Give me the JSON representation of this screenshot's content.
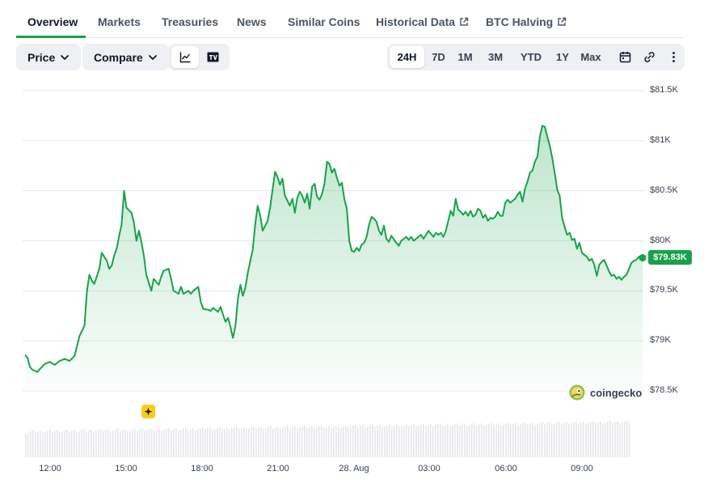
{
  "tabs": [
    {
      "label": "Overview",
      "active": true
    },
    {
      "label": "Markets"
    },
    {
      "label": "Treasuries"
    },
    {
      "label": "News"
    },
    {
      "label": "Similar Coins"
    },
    {
      "label": "Historical Data",
      "icon": "external-link-icon"
    },
    {
      "label": "BTC Halving",
      "icon": "external-link-icon"
    }
  ],
  "toolbar": {
    "price_label": "Price",
    "compare_label": "Compare",
    "view_modes": [
      "line-chart-icon",
      "tradingview-icon"
    ],
    "ranges": [
      "24H",
      "7D",
      "1M",
      "3M",
      "YTD",
      "1Y",
      "Max"
    ],
    "active_range": "24H",
    "tools": [
      "calendar-icon",
      "link-icon",
      "more-vertical-icon"
    ]
  },
  "chart_data": {
    "type": "area",
    "title": "",
    "xlabel": "",
    "ylabel": "",
    "x_ticks": [
      "12:00",
      "15:00",
      "18:00",
      "21:00",
      "28. Aug",
      "03:00",
      "06:00",
      "09:00"
    ],
    "y_ticks": [
      "$78.5K",
      "$79K",
      "$79.5K",
      "$80K",
      "$80.5K",
      "$81K",
      "$81.5K"
    ],
    "ylim": [
      78500,
      81500
    ],
    "x_unit": "hours after 11:00 (27 Aug)",
    "series": [
      {
        "values": [
          [
            0.0,
            78860
          ],
          [
            0.1,
            78830
          ],
          [
            0.2,
            78740
          ],
          [
            0.3,
            78710
          ],
          [
            0.5,
            78690
          ],
          [
            0.6,
            78720
          ],
          [
            0.8,
            78770
          ],
          [
            1.0,
            78790
          ],
          [
            1.2,
            78760
          ],
          [
            1.4,
            78800
          ],
          [
            1.6,
            78820
          ],
          [
            1.8,
            78800
          ],
          [
            2.0,
            78850
          ],
          [
            2.2,
            79050
          ],
          [
            2.4,
            79150
          ],
          [
            2.5,
            79500
          ],
          [
            2.6,
            79660
          ],
          [
            2.7,
            79600
          ],
          [
            2.8,
            79570
          ],
          [
            3.0,
            79720
          ],
          [
            3.1,
            79880
          ],
          [
            3.3,
            79800
          ],
          [
            3.4,
            79720
          ],
          [
            3.5,
            79750
          ],
          [
            3.6,
            79850
          ],
          [
            3.7,
            79920
          ],
          [
            3.8,
            80050
          ],
          [
            3.9,
            80160
          ],
          [
            4.0,
            80500
          ],
          [
            4.1,
            80330
          ],
          [
            4.3,
            80280
          ],
          [
            4.4,
            80180
          ],
          [
            4.5,
            80000
          ],
          [
            4.6,
            80100
          ],
          [
            4.7,
            79990
          ],
          [
            4.8,
            79850
          ],
          [
            4.9,
            79660
          ],
          [
            5.0,
            79580
          ],
          [
            5.1,
            79500
          ],
          [
            5.2,
            79620
          ],
          [
            5.4,
            79560
          ],
          [
            5.5,
            79640
          ],
          [
            5.6,
            79700
          ],
          [
            5.8,
            79720
          ],
          [
            5.9,
            79620
          ],
          [
            6.0,
            79500
          ],
          [
            6.2,
            79470
          ],
          [
            6.3,
            79540
          ],
          [
            6.4,
            79470
          ],
          [
            6.6,
            79500
          ],
          [
            6.7,
            79470
          ],
          [
            6.8,
            79500
          ],
          [
            7.0,
            79540
          ],
          [
            7.1,
            79390
          ],
          [
            7.2,
            79320
          ],
          [
            7.4,
            79310
          ],
          [
            7.5,
            79300
          ],
          [
            7.6,
            79330
          ],
          [
            7.8,
            79290
          ],
          [
            7.9,
            79340
          ],
          [
            8.0,
            79260
          ],
          [
            8.1,
            79190
          ],
          [
            8.2,
            79230
          ],
          [
            8.3,
            79140
          ],
          [
            8.35,
            79080
          ],
          [
            8.4,
            79030
          ],
          [
            8.5,
            79150
          ],
          [
            8.6,
            79420
          ],
          [
            8.7,
            79560
          ],
          [
            8.8,
            79450
          ],
          [
            8.9,
            79530
          ],
          [
            9.0,
            79680
          ],
          [
            9.1,
            79800
          ],
          [
            9.2,
            79910
          ],
          [
            9.3,
            80170
          ],
          [
            9.4,
            80350
          ],
          [
            9.5,
            80250
          ],
          [
            9.6,
            80100
          ],
          [
            9.8,
            80200
          ],
          [
            9.9,
            80330
          ],
          [
            10.0,
            80510
          ],
          [
            10.1,
            80690
          ],
          [
            10.2,
            80640
          ],
          [
            10.3,
            80560
          ],
          [
            10.4,
            80620
          ],
          [
            10.5,
            80450
          ],
          [
            10.6,
            80400
          ],
          [
            10.7,
            80350
          ],
          [
            10.8,
            80420
          ],
          [
            10.9,
            80280
          ],
          [
            11.0,
            80430
          ],
          [
            11.1,
            80490
          ],
          [
            11.2,
            80450
          ],
          [
            11.3,
            80380
          ],
          [
            11.4,
            80470
          ],
          [
            11.5,
            80320
          ],
          [
            11.6,
            80540
          ],
          [
            11.7,
            80570
          ],
          [
            11.8,
            80440
          ],
          [
            11.9,
            80410
          ],
          [
            12.0,
            80470
          ],
          [
            12.1,
            80570
          ],
          [
            12.2,
            80790
          ],
          [
            12.3,
            80770
          ],
          [
            12.4,
            80680
          ],
          [
            12.5,
            80720
          ],
          [
            12.6,
            80630
          ],
          [
            12.7,
            80550
          ],
          [
            12.8,
            80580
          ],
          [
            12.9,
            80420
          ],
          [
            13.0,
            80320
          ],
          [
            13.1,
            80000
          ],
          [
            13.2,
            79900
          ],
          [
            13.3,
            79890
          ],
          [
            13.4,
            79930
          ],
          [
            13.5,
            79900
          ],
          [
            13.6,
            79960
          ],
          [
            13.7,
            79980
          ],
          [
            13.8,
            80040
          ],
          [
            13.9,
            80160
          ],
          [
            14.0,
            80240
          ],
          [
            14.1,
            80220
          ],
          [
            14.2,
            80190
          ],
          [
            14.3,
            80100
          ],
          [
            14.4,
            80060
          ],
          [
            14.5,
            80150
          ],
          [
            14.6,
            80020
          ],
          [
            14.7,
            79990
          ],
          [
            14.8,
            80050
          ],
          [
            15.0,
            79980
          ],
          [
            15.1,
            79950
          ],
          [
            15.2,
            80000
          ],
          [
            15.4,
            80040
          ],
          [
            15.5,
            80010
          ],
          [
            15.6,
            80040
          ],
          [
            15.7,
            80000
          ],
          [
            15.8,
            80020
          ],
          [
            16.0,
            80060
          ],
          [
            16.1,
            80020
          ],
          [
            16.2,
            80060
          ],
          [
            16.3,
            80100
          ],
          [
            16.5,
            80040
          ],
          [
            16.6,
            80080
          ],
          [
            16.7,
            80060
          ],
          [
            16.8,
            80080
          ],
          [
            16.9,
            80040
          ],
          [
            17.0,
            80100
          ],
          [
            17.1,
            80200
          ],
          [
            17.2,
            80300
          ],
          [
            17.3,
            80250
          ],
          [
            17.4,
            80420
          ],
          [
            17.5,
            80310
          ],
          [
            17.6,
            80290
          ],
          [
            17.7,
            80260
          ],
          [
            17.8,
            80290
          ],
          [
            17.9,
            80250
          ],
          [
            18.0,
            80300
          ],
          [
            18.1,
            80240
          ],
          [
            18.2,
            80260
          ],
          [
            18.3,
            80320
          ],
          [
            18.4,
            80300
          ],
          [
            18.5,
            80230
          ],
          [
            18.6,
            80260
          ],
          [
            18.7,
            80200
          ],
          [
            18.8,
            80230
          ],
          [
            18.9,
            80220
          ],
          [
            19.0,
            80240
          ],
          [
            19.1,
            80290
          ],
          [
            19.2,
            80250
          ],
          [
            19.3,
            80250
          ],
          [
            19.4,
            80380
          ],
          [
            19.5,
            80410
          ],
          [
            19.6,
            80380
          ],
          [
            19.8,
            80420
          ],
          [
            19.9,
            80460
          ],
          [
            20.0,
            80490
          ],
          [
            20.1,
            80390
          ],
          [
            20.2,
            80520
          ],
          [
            20.3,
            80590
          ],
          [
            20.4,
            80680
          ],
          [
            20.5,
            80700
          ],
          [
            20.6,
            80790
          ],
          [
            20.7,
            80840
          ],
          [
            20.8,
            81040
          ],
          [
            20.9,
            81150
          ],
          [
            21.0,
            81140
          ],
          [
            21.1,
            81040
          ],
          [
            21.2,
            80950
          ],
          [
            21.3,
            80830
          ],
          [
            21.4,
            80680
          ],
          [
            21.5,
            80510
          ],
          [
            21.6,
            80450
          ],
          [
            21.7,
            80230
          ],
          [
            21.8,
            80140
          ],
          [
            21.9,
            80060
          ],
          [
            22.0,
            80080
          ],
          [
            22.1,
            80010
          ],
          [
            22.2,
            80020
          ],
          [
            22.3,
            79920
          ],
          [
            22.4,
            79980
          ],
          [
            22.5,
            79880
          ],
          [
            22.6,
            79860
          ],
          [
            22.7,
            79840
          ],
          [
            22.8,
            79800
          ],
          [
            22.9,
            79820
          ],
          [
            23.0,
            79760
          ],
          [
            23.1,
            79650
          ],
          [
            23.2,
            79760
          ],
          [
            23.3,
            79790
          ],
          [
            23.4,
            79810
          ],
          [
            23.5,
            79750
          ],
          [
            23.6,
            79690
          ],
          [
            23.7,
            79650
          ],
          [
            23.8,
            79660
          ],
          [
            23.9,
            79620
          ],
          [
            24.0,
            79640
          ],
          [
            24.1,
            79610
          ],
          [
            24.2,
            79640
          ],
          [
            24.3,
            79660
          ],
          [
            24.4,
            79720
          ],
          [
            24.5,
            79780
          ],
          [
            24.6,
            79800
          ],
          [
            24.7,
            79810
          ],
          [
            24.8,
            79840
          ],
          [
            24.9,
            79850
          ],
          [
            24.95,
            79830
          ]
        ]
      }
    ],
    "current_price_label": "$79.83K",
    "volume_bars": "present",
    "grid": true,
    "watermark": "coingecko"
  }
}
